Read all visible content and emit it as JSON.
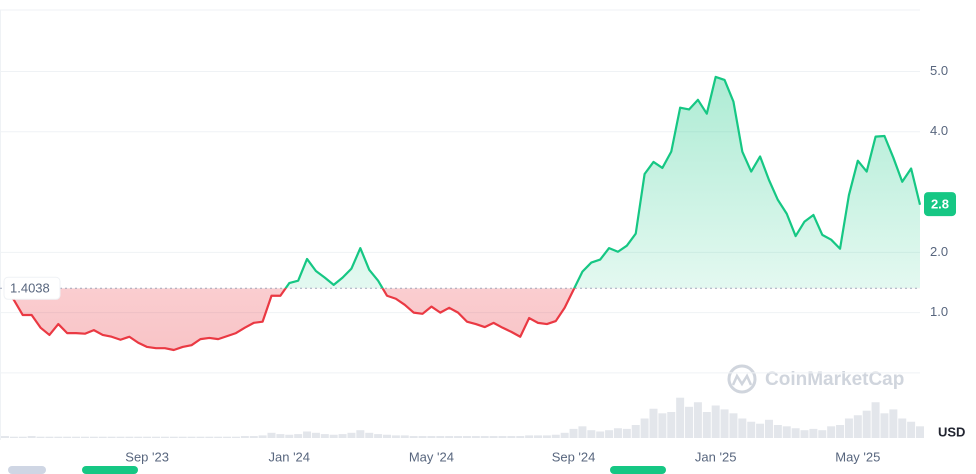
{
  "chart_data": {
    "type": "line",
    "categories": [
      null,
      null,
      null,
      null,
      null,
      null,
      null,
      null,
      null,
      null,
      null,
      null,
      null,
      null,
      null,
      null,
      "Sep '23",
      null,
      null,
      null,
      null,
      null,
      null,
      null,
      null,
      null,
      null,
      null,
      null,
      null,
      null,
      null,
      "Jan '24",
      null,
      null,
      null,
      null,
      null,
      null,
      null,
      null,
      null,
      null,
      null,
      null,
      null,
      null,
      null,
      "May '24",
      null,
      null,
      null,
      null,
      null,
      null,
      null,
      null,
      null,
      null,
      null,
      null,
      null,
      null,
      null,
      "Sep '24",
      null,
      null,
      null,
      null,
      null,
      null,
      null,
      null,
      null,
      null,
      null,
      null,
      null,
      null,
      null,
      "Jan '25",
      null,
      null,
      null,
      null,
      null,
      null,
      null,
      null,
      null,
      null,
      null,
      null,
      null,
      null,
      null,
      "May '25",
      null,
      null,
      null,
      null,
      null,
      null,
      null
    ],
    "values": [
      1.4,
      1.21,
      0.96,
      0.96,
      0.75,
      0.63,
      0.81,
      0.66,
      0.66,
      0.65,
      0.71,
      0.63,
      0.6,
      0.55,
      0.6,
      0.5,
      0.43,
      0.41,
      0.41,
      0.38,
      0.43,
      0.46,
      0.56,
      0.58,
      0.56,
      0.61,
      0.66,
      0.75,
      0.83,
      0.85,
      1.28,
      1.28,
      1.49,
      1.53,
      1.89,
      1.69,
      1.58,
      1.46,
      1.58,
      1.73,
      2.07,
      1.71,
      1.53,
      1.28,
      1.23,
      1.13,
      1.0,
      0.98,
      1.1,
      1.0,
      1.08,
      1.0,
      0.85,
      0.81,
      0.76,
      0.83,
      0.75,
      0.68,
      0.6,
      0.91,
      0.83,
      0.81,
      0.86,
      1.08,
      1.38,
      1.68,
      1.83,
      1.88,
      2.07,
      2.01,
      2.11,
      2.31,
      3.3,
      3.5,
      3.4,
      3.67,
      4.4,
      4.37,
      4.53,
      4.3,
      4.91,
      4.86,
      4.5,
      3.67,
      3.34,
      3.59,
      3.2,
      2.87,
      2.64,
      2.27,
      2.51,
      2.62,
      2.29,
      2.21,
      2.06,
      2.95,
      3.52,
      3.34,
      3.92,
      3.93,
      3.57,
      3.17,
      3.39,
      2.79
    ],
    "volume": [
      3,
      2,
      2,
      3,
      2,
      2,
      2,
      2,
      2,
      2,
      2,
      2,
      2,
      2,
      2,
      2,
      2,
      2,
      2,
      2,
      2,
      2,
      2,
      2,
      2,
      2,
      2,
      3,
      3,
      4,
      8,
      6,
      5,
      6,
      10,
      8,
      6,
      5,
      6,
      8,
      12,
      8,
      6,
      5,
      4,
      4,
      3,
      3,
      3,
      3,
      3,
      3,
      3,
      3,
      3,
      3,
      3,
      3,
      3,
      4,
      4,
      4,
      5,
      8,
      14,
      18,
      12,
      10,
      12,
      15,
      14,
      20,
      30,
      45,
      38,
      40,
      62,
      48,
      55,
      40,
      50,
      44,
      38,
      30,
      25,
      22,
      28,
      20,
      18,
      15,
      12,
      14,
      12,
      18,
      20,
      30,
      35,
      42,
      55,
      38,
      44,
      30,
      25,
      18
    ],
    "ylim": [
      -1.08,
      6.02
    ],
    "y2lim": [
      0,
      100
    ],
    "yticks": [
      {
        "value": 1,
        "label": "1.0"
      },
      {
        "value": 2,
        "label": "2.0"
      },
      {
        "value": 4,
        "label": "4.0"
      },
      {
        "value": 5,
        "label": "5.0"
      }
    ],
    "baseline": 1.4038,
    "last_price": 2.8,
    "currency": "USD",
    "watermark": "CoinMarketCap",
    "up_color": "#16c784",
    "down_color": "#ea3943",
    "volume_color": "#e3e6eb",
    "grid": true
  }
}
